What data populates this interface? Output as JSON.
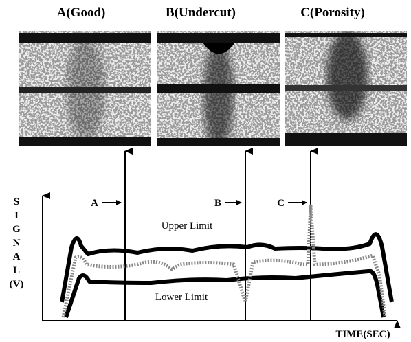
{
  "panels": [
    {
      "title": "A(Good)"
    },
    {
      "title": "B(Undercut)"
    },
    {
      "title": "C(Porosity)"
    }
  ],
  "graph": {
    "y_axis_label_lines": [
      "S",
      "I",
      "G",
      "N",
      "A",
      "L",
      "(V)"
    ],
    "x_axis_label": "TIME(SEC)",
    "upper_limit_label": "Upper Limit",
    "lower_limit_label": "Lower Limit",
    "markers": [
      {
        "label": "A"
      },
      {
        "label": "B"
      },
      {
        "label": "C"
      }
    ]
  }
}
